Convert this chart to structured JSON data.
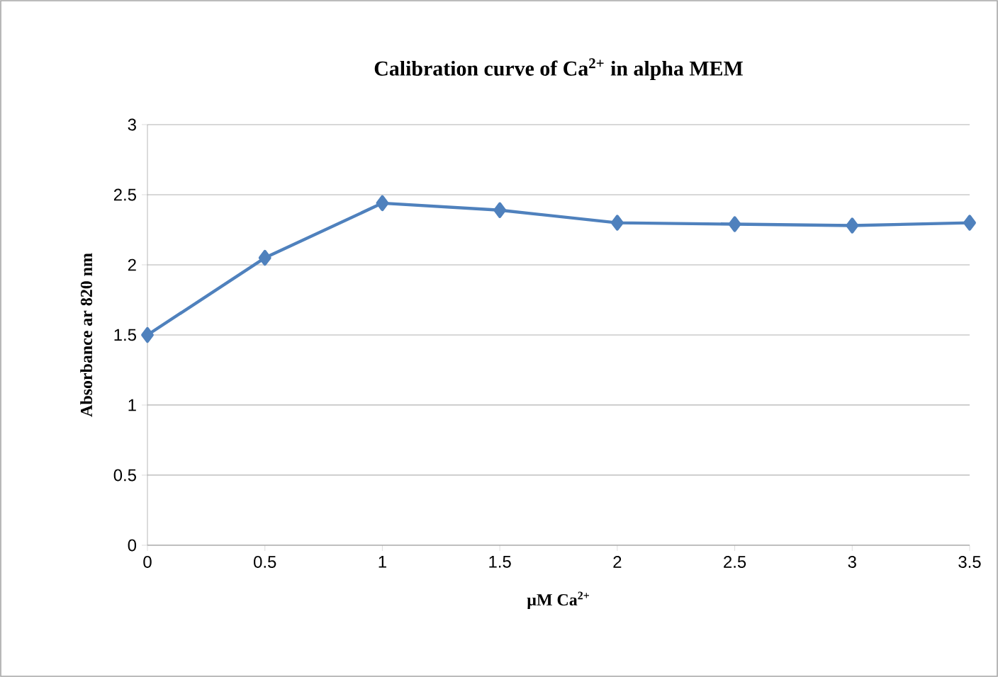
{
  "chart_data": {
    "type": "line",
    "title": "Calibration  curve of Ca$^{2+}$ in alpha MEM",
    "xlabel": "µM Ca$^{2+}$",
    "ylabel": "Absorbance ar 820 nm",
    "x": [
      0,
      0.5,
      1,
      1.5,
      2,
      2.5,
      3,
      3.5
    ],
    "series": [
      {
        "color": "#4f81bd",
        "values": [
          1.5,
          2.05,
          2.44,
          2.39,
          2.3,
          2.29,
          2.28,
          2.3
        ]
      }
    ],
    "xlim": [
      0,
      3.5
    ],
    "xticks": [
      0,
      0.5,
      1,
      1.5,
      2,
      2.5,
      3,
      3.5
    ],
    "ylim": [
      0,
      3
    ],
    "yticks": [
      0,
      0.5,
      1,
      1.5,
      2,
      2.5,
      3
    ],
    "grid": "y",
    "marker": "diamond",
    "line_style": "solid"
  }
}
